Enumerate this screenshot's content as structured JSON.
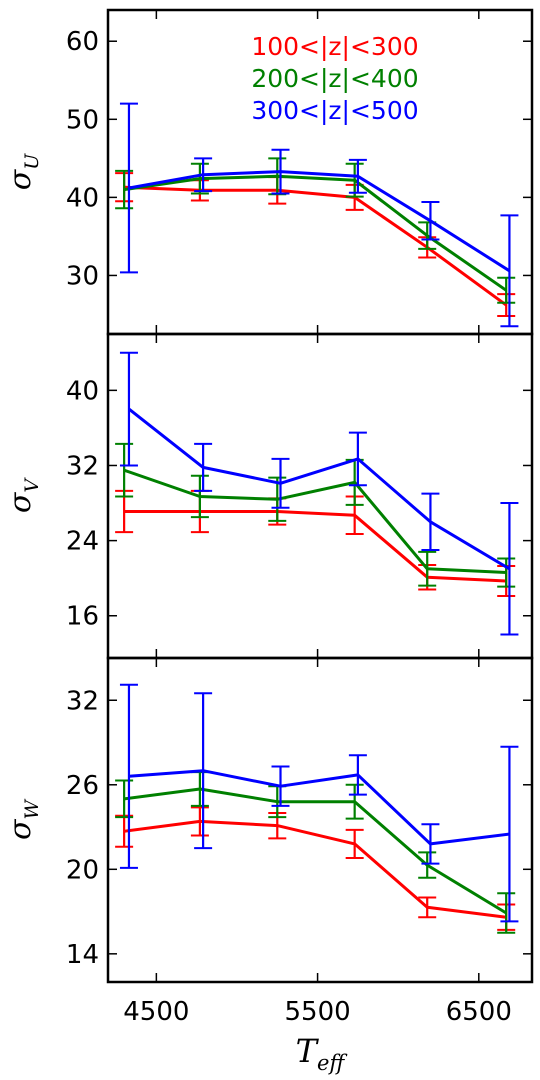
{
  "chart_data": {
    "type": "line",
    "x_axis": {
      "label": "T",
      "label_sub": "eff",
      "ticks": [
        4500,
        5500,
        6500
      ],
      "range": [
        4200,
        6830
      ]
    },
    "legend": {
      "placement": "top",
      "panel": 0,
      "entries": [
        {
          "name": "100<|z|<300",
          "color": "#ff0000"
        },
        {
          "name": "200<|z|<400",
          "color": "#008000"
        },
        {
          "name": "300<|z|<500",
          "color": "#0000ff"
        }
      ]
    },
    "panels": [
      {
        "ylabel": "σ",
        "ylabel_sub": "U",
        "ylim": [
          22.5,
          64
        ],
        "yticks": [
          30,
          40,
          50,
          60
        ],
        "series": [
          {
            "name": "100<|z|<300",
            "color": "#ff0000",
            "x": [
              4300,
              4770,
              5250,
              5730,
              6180,
              6670
            ],
            "y": [
              41.3,
              40.9,
              40.9,
              40.0,
              33.6,
              26.2
            ],
            "yerr": [
              1.8,
              1.3,
              1.7,
              1.6,
              1.3,
              1.4
            ]
          },
          {
            "name": "200<|z|<400",
            "color": "#008000",
            "x": [
              4300,
              4770,
              5250,
              5730,
              6180,
              6670
            ],
            "y": [
              41.0,
              42.4,
              42.7,
              42.2,
              35.1,
              28.1
            ],
            "yerr": [
              2.4,
              1.9,
              2.3,
              2.1,
              1.7,
              1.6
            ]
          },
          {
            "name": "300<|z|<500",
            "color": "#0000ff",
            "x": [
              4330,
              4790,
              5270,
              5750,
              6200,
              6690
            ],
            "y": [
              41.2,
              42.9,
              43.3,
              42.7,
              37.0,
              30.6
            ],
            "yerr": [
              10.8,
              2.1,
              2.8,
              2.1,
              2.4,
              7.1
            ]
          }
        ]
      },
      {
        "ylabel": "σ",
        "ylabel_sub": "V",
        "ylim": [
          11.5,
          46
        ],
        "yticks": [
          16,
          24,
          32,
          40
        ],
        "series": [
          {
            "name": "100<|z|<300",
            "color": "#ff0000",
            "x": [
              4300,
              4770,
              5250,
              5730,
              6180,
              6670
            ],
            "y": [
              27.1,
              27.1,
              27.1,
              26.7,
              20.1,
              19.7
            ],
            "yerr": [
              2.2,
              2.2,
              1.4,
              2.0,
              1.3,
              1.6
            ]
          },
          {
            "name": "200<|z|<400",
            "color": "#008000",
            "x": [
              4300,
              4770,
              5250,
              5730,
              6180,
              6670
            ],
            "y": [
              31.5,
              28.7,
              28.4,
              30.2,
              21.0,
              20.6
            ],
            "yerr": [
              2.8,
              2.2,
              2.3,
              2.4,
              1.8,
              1.5
            ]
          },
          {
            "name": "300<|z|<500",
            "color": "#0000ff",
            "x": [
              4330,
              4790,
              5270,
              5750,
              6200,
              6690
            ],
            "y": [
              38.0,
              31.8,
              30.1,
              32.7,
              26.0,
              21.0
            ],
            "yerr": [
              6.0,
              2.5,
              2.6,
              2.8,
              3.0,
              7.0
            ]
          }
        ]
      },
      {
        "ylabel": "σ",
        "ylabel_sub": "W",
        "ylim": [
          12,
          35
        ],
        "yticks": [
          14,
          20,
          26,
          32
        ],
        "series": [
          {
            "name": "100<|z|<300",
            "color": "#ff0000",
            "x": [
              4300,
              4770,
              5250,
              5730,
              6180,
              6670
            ],
            "y": [
              22.7,
              23.4,
              23.1,
              21.8,
              17.3,
              16.6
            ],
            "yerr": [
              1.1,
              1.0,
              0.9,
              1.0,
              0.7,
              0.9
            ]
          },
          {
            "name": "200<|z|<400",
            "color": "#008000",
            "x": [
              4300,
              4770,
              5250,
              5730,
              6180,
              6670
            ],
            "y": [
              25.0,
              25.7,
              24.8,
              24.8,
              20.3,
              16.9
            ],
            "yerr": [
              1.3,
              1.2,
              1.1,
              1.2,
              0.9,
              1.4
            ]
          },
          {
            "name": "300<|z|<500",
            "color": "#0000ff",
            "x": [
              4330,
              4790,
              5270,
              5750,
              6200,
              6690
            ],
            "y": [
              26.6,
              27.0,
              25.9,
              26.7,
              21.8,
              22.5
            ],
            "yerr": [
              6.5,
              5.5,
              1.4,
              1.4,
              1.4,
              6.2
            ]
          }
        ]
      }
    ]
  }
}
